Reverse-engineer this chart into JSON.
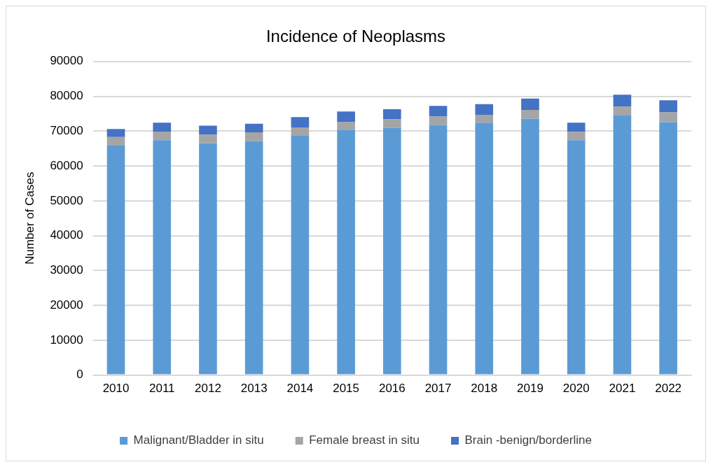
{
  "chart_data": {
    "type": "bar",
    "title": "Incidence of Neoplasms",
    "ylabel": "Number of Cases",
    "categories": [
      "2010",
      "2011",
      "2012",
      "2013",
      "2014",
      "2015",
      "2016",
      "2017",
      "2018",
      "2019",
      "2020",
      "2021",
      "2022"
    ],
    "stacked": true,
    "series": [
      {
        "name": "Malignant/Bladder in situ",
        "color": "#5b9bd5",
        "values": [
          66000,
          67400,
          66500,
          67100,
          68800,
          70400,
          70900,
          71750,
          72400,
          73600,
          67400,
          74500,
          72600
        ]
      },
      {
        "name": "Female breast in situ",
        "color": "#a5a5a5",
        "values": [
          2300,
          2450,
          2450,
          2550,
          2250,
          2200,
          2500,
          2450,
          2300,
          2500,
          2350,
          2500,
          2800
        ]
      },
      {
        "name": "Brain -benign/borderline",
        "color": "#4472c4",
        "values": [
          2300,
          2550,
          2600,
          2450,
          3000,
          3050,
          2900,
          3050,
          3050,
          3250,
          2650,
          3450,
          3450
        ]
      }
    ],
    "ylim": [
      0,
      90000
    ],
    "yticks": [
      0,
      10000,
      20000,
      30000,
      40000,
      50000,
      60000,
      70000,
      80000,
      90000
    ],
    "grid": "y",
    "legend": "bottom"
  }
}
